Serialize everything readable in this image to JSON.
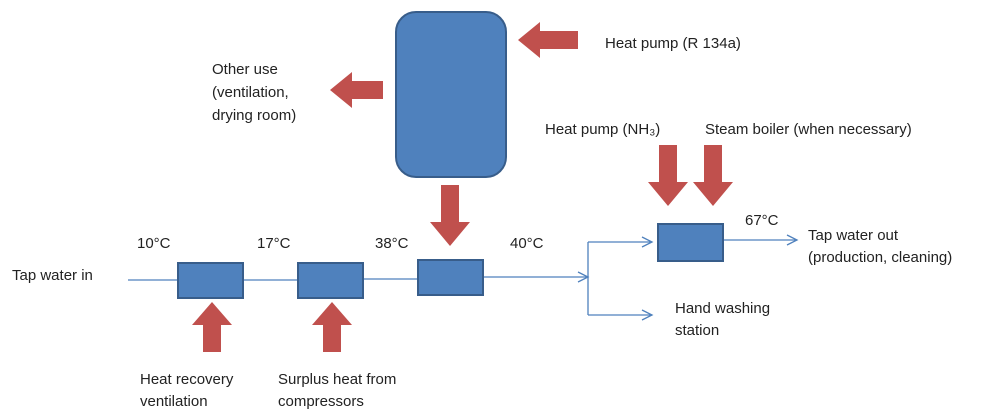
{
  "labels": {
    "heat_pump_r134a": "Heat pump (R 134a)",
    "other_use": [
      "Other use",
      "(ventilation,",
      "drying room)"
    ],
    "heat_pump_nh3": "Heat pump (NH₃)",
    "steam_boiler": "Steam boiler (when necessary)",
    "tap_water_in": "Tap water in",
    "temperatures": [
      "10°C",
      "17°C",
      "38°C",
      "40°C",
      "67°C"
    ],
    "tap_water_out": [
      "Tap water out",
      "(production, cleaning)"
    ],
    "hand_washing": [
      "Hand washing",
      "station"
    ],
    "heat_recovery": [
      "Heat recovery",
      "ventilation"
    ],
    "surplus_heat": [
      "Surplus heat from",
      "compressors"
    ]
  }
}
